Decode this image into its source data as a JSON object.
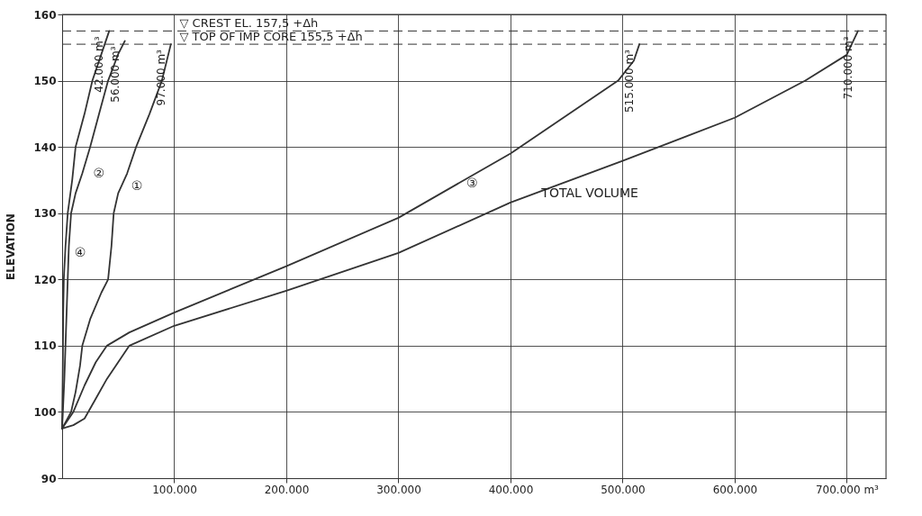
{
  "chart_data": {
    "type": "line",
    "ylabel": "ELEVATION",
    "xlim": [
      0,
      735000
    ],
    "ylim": [
      90,
      160
    ],
    "xticks": [
      {
        "value": 100000,
        "label": "100.000"
      },
      {
        "value": 200000,
        "label": "200.000"
      },
      {
        "value": 300000,
        "label": "300.000"
      },
      {
        "value": 400000,
        "label": "400.000"
      },
      {
        "value": 500000,
        "label": "500.000"
      },
      {
        "value": 600000,
        "label": "600.000"
      },
      {
        "value": 700000,
        "label": "700.000 m³"
      }
    ],
    "yticks": [
      90,
      100,
      110,
      120,
      130,
      140,
      150,
      160
    ],
    "grid": true,
    "marker": "none",
    "line_style": "solid",
    "series": [
      {
        "color": "#333333",
        "x": [
          0,
          500,
          1000,
          1500,
          3000,
          5000,
          9000,
          12000,
          20000,
          27000,
          35000,
          42000
        ],
        "values": [
          97.5,
          105,
          115,
          120,
          125,
          130,
          135,
          140,
          145,
          150,
          154,
          157.5
        ]
      },
      {
        "color": "#333333",
        "x": [
          0,
          2000,
          3000,
          4000,
          5000,
          6000,
          8000,
          12000,
          18000,
          25000,
          33000,
          41000,
          50000,
          56000
        ],
        "values": [
          97.5,
          105,
          110,
          115,
          120,
          125,
          130,
          133,
          136,
          140,
          145,
          150,
          154,
          156
        ]
      },
      {
        "color": "#333333",
        "x": [
          0,
          8000,
          12000,
          16000,
          18000,
          25000,
          35000,
          41000,
          44000,
          46000,
          50000,
          58000,
          66000,
          78000,
          89000,
          97000
        ],
        "values": [
          97.5,
          100,
          103,
          107,
          110,
          114,
          118,
          120,
          125,
          130,
          133,
          136,
          140,
          145,
          150,
          155.5
        ]
      },
      {
        "color": "#333333",
        "x": [
          0,
          10000,
          20000,
          30000,
          40000,
          60000,
          100000,
          200000,
          300000,
          400000,
          496000,
          510000,
          515000
        ],
        "values": [
          97.5,
          100,
          104,
          107.5,
          110,
          112,
          115,
          122,
          129.3,
          139,
          150,
          153,
          155.5
        ]
      },
      {
        "color": "#333333",
        "x": [
          0,
          10000,
          20000,
          30000,
          40000,
          60000,
          100000,
          200000,
          300000,
          400000,
          500000,
          600000,
          663000,
          700000,
          710000
        ],
        "values": [
          97.5,
          98,
          99,
          102,
          105,
          110,
          113,
          118.3,
          124,
          131.6,
          137.9,
          144.4,
          150,
          153.9,
          157.5
        ]
      }
    ],
    "ref_lines": [
      {
        "axis": "y",
        "value": 157.5,
        "label": "▽ CREST EL. 157,5 +Δh",
        "line_style": "dashed",
        "color": "#333333"
      },
      {
        "axis": "y",
        "value": 155.5,
        "label": "▽ TOP OF IMP CORE 155,5 +Δh",
        "line_style": "dashed",
        "color": "#333333"
      }
    ],
    "annotations": [
      {
        "text": "42.000 m³",
        "x": 42000,
        "y": 157.5
      },
      {
        "text": "56.000 m³",
        "x": 56000,
        "y": 156
      },
      {
        "text": "97.000 m³",
        "x": 97000,
        "y": 155.5
      },
      {
        "text": "515.000 m³",
        "x": 515000,
        "y": 155.5
      },
      {
        "text": "710.000 m³",
        "x": 710000,
        "y": 157.5
      },
      {
        "text": "④",
        "x": 1500,
        "y": 124
      },
      {
        "text": "②",
        "x": 18000,
        "y": 136
      },
      {
        "text": "①",
        "x": 52000,
        "y": 134
      },
      {
        "text": "③",
        "x": 351000,
        "y": 134.4
      },
      {
        "text": "TOTAL VOLUME",
        "x": 418000,
        "y": 133
      }
    ]
  }
}
